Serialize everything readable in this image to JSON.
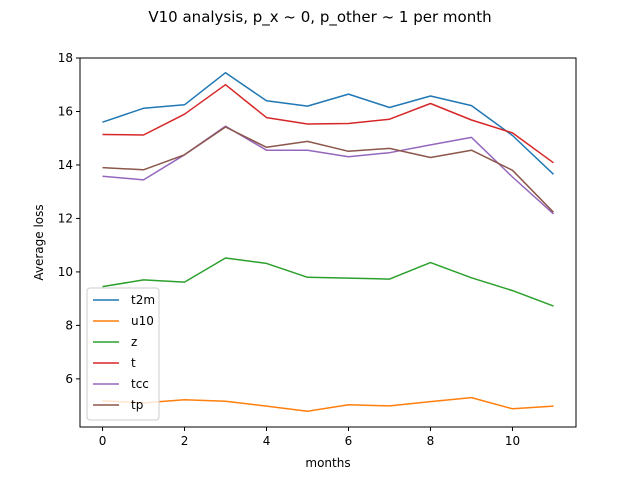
{
  "chart_data": {
    "type": "line",
    "title": "V10 analysis, p_x ~ 0, p_other ~ 1 per month",
    "xlabel": "months",
    "ylabel": "Average loss",
    "xlim": [
      -0.55,
      11.55
    ],
    "ylim": [
      4.2,
      18.0
    ],
    "xticks": [
      0,
      2,
      4,
      6,
      8,
      10
    ],
    "yticks": [
      6,
      8,
      10,
      12,
      14,
      16,
      18
    ],
    "legend_position": "lower-left",
    "x": [
      0,
      1,
      2,
      3,
      4,
      5,
      6,
      7,
      8,
      9,
      10,
      11
    ],
    "series": [
      {
        "name": "t2m",
        "color": "#1f77b4",
        "values": [
          15.6,
          16.12,
          16.25,
          17.45,
          16.4,
          16.2,
          16.65,
          16.15,
          16.58,
          16.22,
          15.1,
          13.65
        ]
      },
      {
        "name": "u10",
        "color": "#ff7f0e",
        "values": [
          5.18,
          5.1,
          5.22,
          5.16,
          4.98,
          4.79,
          5.03,
          4.99,
          5.15,
          5.3,
          4.88,
          4.98
        ]
      },
      {
        "name": "z",
        "color": "#2ca02c",
        "values": [
          9.45,
          9.7,
          9.62,
          10.52,
          10.32,
          9.8,
          9.77,
          9.73,
          10.35,
          9.78,
          9.3,
          8.72
        ]
      },
      {
        "name": "t",
        "color": "#d62728",
        "values": [
          15.14,
          15.12,
          15.9,
          17.0,
          15.77,
          15.53,
          15.55,
          15.71,
          16.3,
          15.68,
          15.2,
          14.08
        ]
      },
      {
        "name": "tcc",
        "color": "#9467bd",
        "values": [
          13.58,
          13.44,
          14.38,
          15.45,
          14.55,
          14.55,
          14.31,
          14.46,
          14.75,
          15.03,
          13.55,
          12.17
        ]
      },
      {
        "name": "tp",
        "color": "#8c564b",
        "values": [
          13.9,
          13.82,
          14.38,
          15.42,
          14.66,
          14.88,
          14.51,
          14.62,
          14.28,
          14.55,
          13.8,
          12.23
        ]
      }
    ]
  }
}
